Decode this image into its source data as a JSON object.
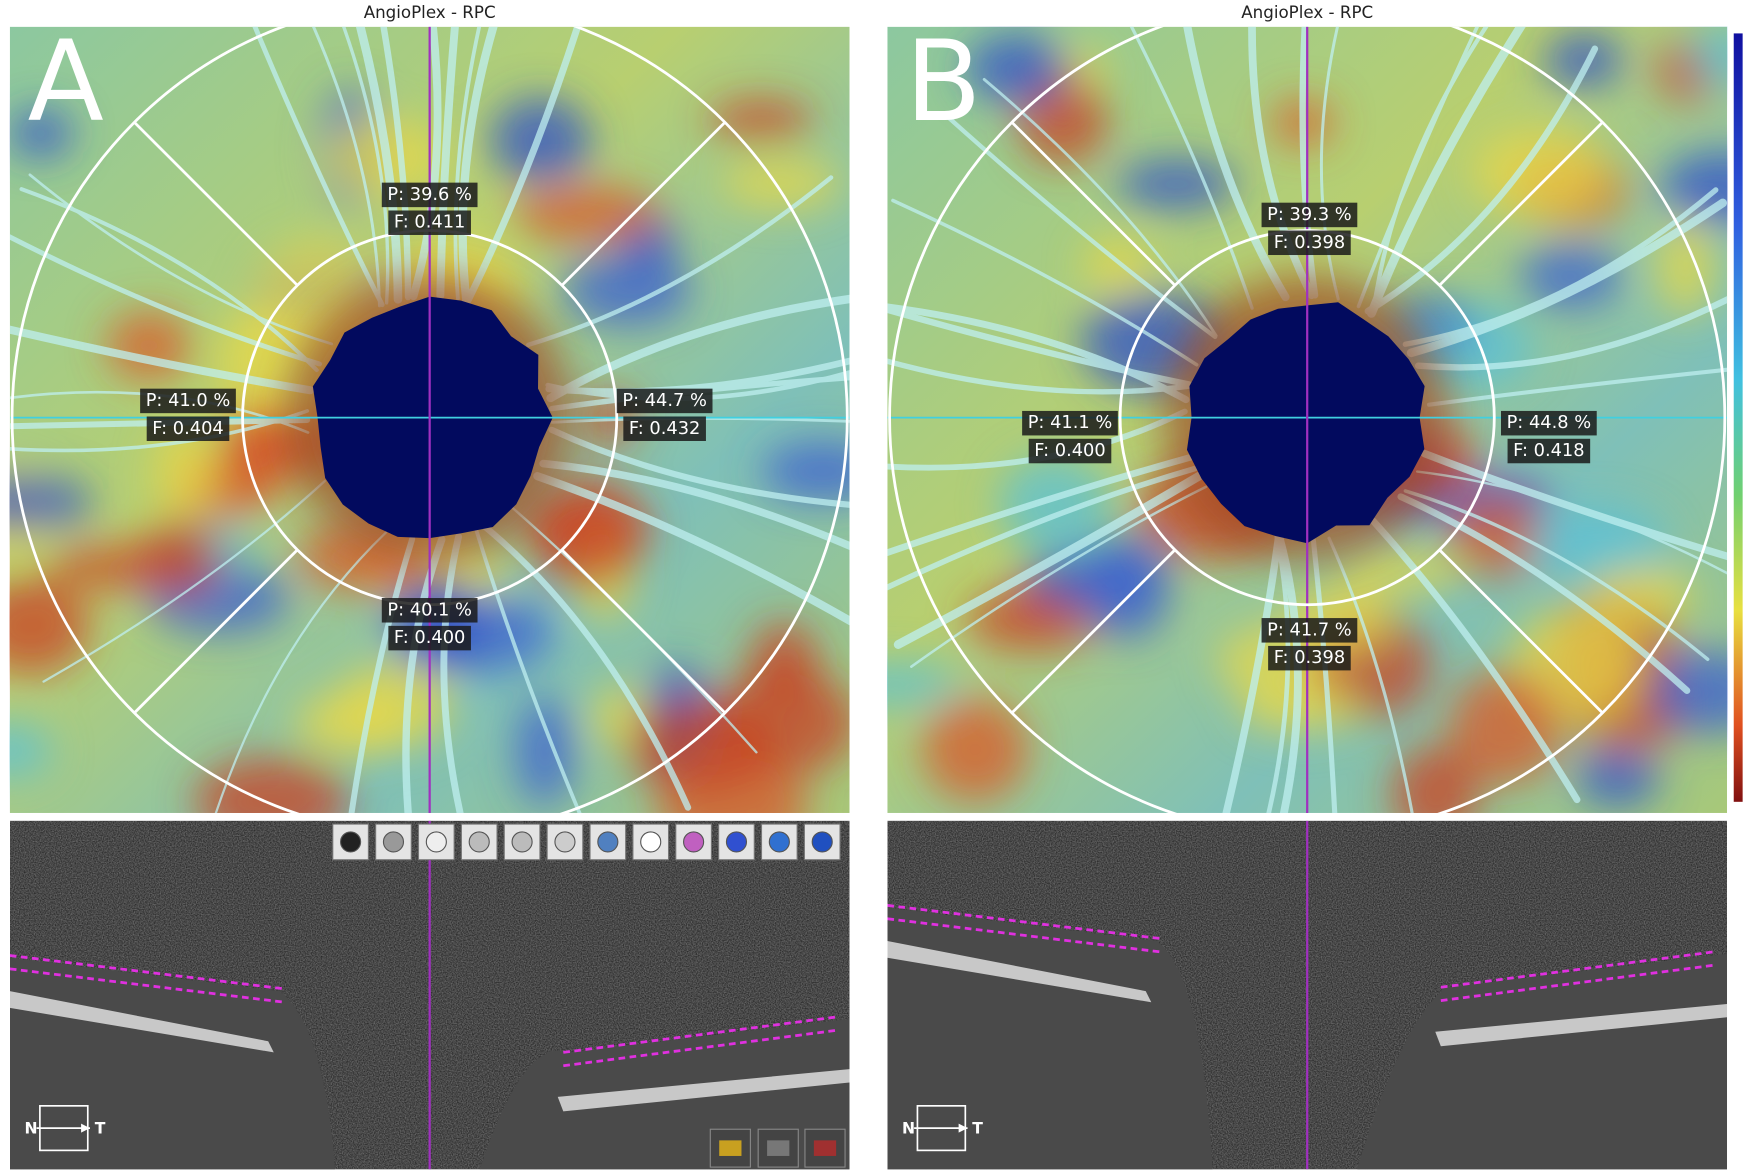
{
  "panels": [
    {
      "letter": "A",
      "title": "AngioPlex - RPC",
      "sectors": [
        {
          "p": "P: 39.6 %",
          "f": "F: 0.411"
        },
        {
          "p": "P: 41.0 %",
          "f": "F: 0.404"
        },
        {
          "p": "P: 44.7 %",
          "f": "F: 0.432"
        },
        {
          "p": "P: 40.1 %",
          "f": "F: 0.400"
        }
      ],
      "orientation": {
        "n": "N",
        "t": "T"
      }
    },
    {
      "letter": "B",
      "title": "AngioPlex - RPC",
      "sectors": [
        {
          "p": "P: 39.3 %",
          "f": "F: 0.398"
        },
        {
          "p": "P: 41.1 %",
          "f": "F: 0.400"
        },
        {
          "p": "P: 44.8 %",
          "f": "F: 0.418"
        },
        {
          "p": "P: 41.7 %",
          "f": "F: 0.398"
        }
      ],
      "orientation": {
        "n": "N",
        "t": "T"
      }
    }
  ]
}
